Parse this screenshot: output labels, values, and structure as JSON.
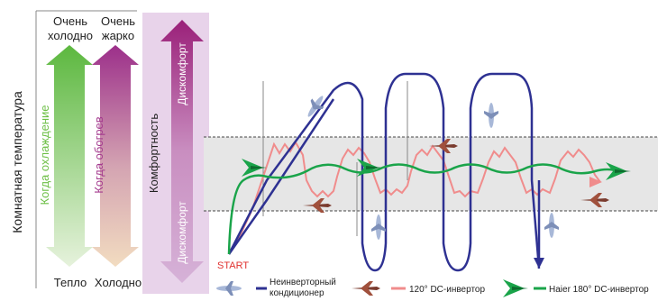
{
  "axis_label": "Комнатная температура",
  "cold_top": [
    "Очень",
    "холодно"
  ],
  "hot_top": [
    "Очень",
    "жарко"
  ],
  "cool_arrow_label": "Когда охлаждение",
  "heat_arrow_label": "Когда обогрев",
  "bottom_left": "Тепло",
  "bottom_right": "Холодно",
  "comfort_label": "Комфортность",
  "discomfort_top": "Дискомфорт",
  "discomfort_bottom": "Дискомфорт",
  "start_label": "START",
  "legend": [
    {
      "icon": "blue-airplane-icon",
      "label_lines": [
        "Неинверторный",
        "кондиционер"
      ],
      "color": "#2e3192"
    },
    {
      "icon": "brown-jet-icon",
      "label_lines": [
        "120° DC-инвертор"
      ],
      "color": "#f08c8c"
    },
    {
      "icon": "green-bird-icon",
      "label_lines": [
        "Haier 180° DC-инвертор"
      ],
      "color": "#1aa44a"
    }
  ],
  "colors": {
    "cool_arrow": "#6cbf45",
    "heat_arrow": "#a43a8e",
    "comfort_band": "#e6e6e6",
    "discomfort_arrow": "#a0297d",
    "comfort_panel": "#e8d3ea",
    "non_inverter": "#2e3192",
    "dc120": "#f08c8c",
    "haier": "#1aa44a",
    "start": "#e0312f"
  }
}
